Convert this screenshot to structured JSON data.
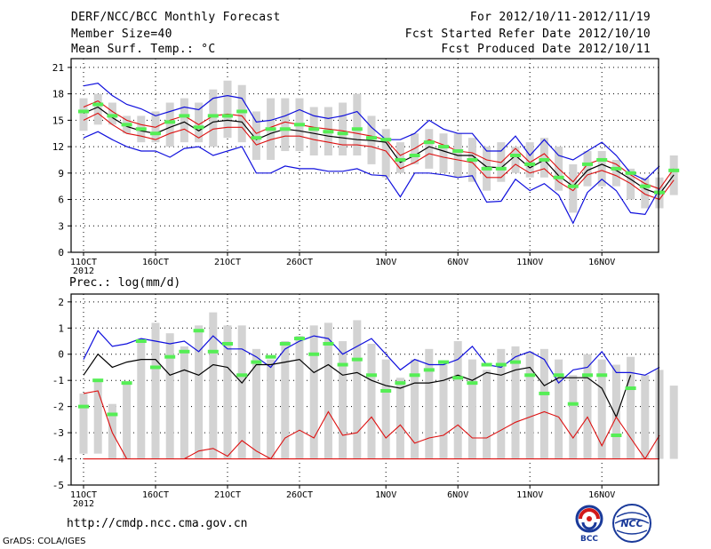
{
  "header": {
    "title": "DERF/NCC/BCC Monthly Forecast",
    "member_size": "Member Size=40",
    "variable": "Mean Surf. Temp.: °C",
    "forecast_period": "For 2012/10/11-2012/11/19",
    "started": "Fcst Started Refer Date 2012/10/10",
    "produced": "Fcst Produced Date 2012/10/11"
  },
  "footer": {
    "url": "http://cmdp.ncc.cma.gov.cn",
    "credit": "GrADS: COLA/IGES",
    "logo_left_text": "BCC",
    "logo_right_text": "NCC"
  },
  "colors": {
    "box": "#d3d3d3",
    "median": "#55ee55",
    "spread": "#1010dd",
    "mean_band": "#dd1010",
    "mean": "#000000"
  },
  "chart_data": [
    {
      "type": "line",
      "title": "Mean Surf. Temp.: °C",
      "x_tick_labels": [
        "11OCT",
        "16OCT",
        "21OCT",
        "26OCT",
        "1NOV",
        "6NOV",
        "11NOV",
        "16NOV"
      ],
      "x_tick_days": [
        0,
        5,
        10,
        15,
        21,
        26,
        31,
        36
      ],
      "x_year_label": "2012",
      "ylim": [
        0,
        22
      ],
      "y_ticks": [
        0,
        3,
        6,
        9,
        12,
        15,
        18,
        21
      ],
      "grid": "dotted",
      "series": [
        {
          "name": "box_low",
          "values": [
            13.8,
            14.5,
            14.5,
            13.5,
            12.5,
            12.5,
            12,
            12.5,
            12.5,
            12,
            13,
            12.5,
            10.5,
            10.5,
            11.5,
            11.5,
            11,
            11,
            11,
            11,
            10,
            8.5,
            9,
            10,
            9.5,
            9,
            8.5,
            8,
            7,
            8,
            9,
            8.5,
            8.5,
            7,
            4.5,
            7.5,
            7.5,
            7.5,
            6,
            5,
            5,
            6.5
          ]
        },
        {
          "name": "box_high",
          "values": [
            17.5,
            18,
            17,
            15.5,
            15.5,
            16,
            17,
            17.5,
            17,
            18.5,
            19.5,
            19,
            16,
            17.5,
            17.5,
            17.5,
            16.5,
            16.5,
            17,
            18,
            15.5,
            14,
            12.5,
            13.5,
            14,
            13.5,
            13.5,
            13,
            12,
            12.5,
            12,
            12.5,
            13,
            12,
            10,
            11.5,
            11.5,
            10.5,
            9.5,
            8.5,
            8.5,
            11
          ]
        },
        {
          "name": "ensemble_median",
          "values": [
            16,
            16.8,
            15.5,
            14.5,
            14,
            13.5,
            14.8,
            15.5,
            14.2,
            15.5,
            15.5,
            16,
            13,
            14,
            14,
            14.5,
            14,
            13.7,
            13.5,
            14,
            13,
            12.8,
            10.5,
            11,
            12.5,
            12,
            11.5,
            10.5,
            9.5,
            9.5,
            11,
            10,
            10.5,
            8.5,
            7.5,
            10,
            10.5,
            9.5,
            9,
            7.5,
            6.8,
            9.3
          ]
        },
        {
          "name": "max",
          "values": [
            18.9,
            19.2,
            17.8,
            16.8,
            16.3,
            15.5,
            16,
            16.5,
            16.2,
            17.5,
            17.8,
            17.5,
            14.8,
            15,
            15.5,
            16.2,
            15.5,
            15.2,
            15.5,
            16,
            14.2,
            12.8,
            12.8,
            13.5,
            15,
            14,
            13.5,
            13.5,
            11.5,
            11.5,
            13.2,
            11,
            12.8,
            11,
            10.5,
            11.5,
            12.5,
            11,
            9,
            8.2,
            9.8
          ]
        },
        {
          "name": "mean_plus_sd",
          "values": [
            16.5,
            17.2,
            16,
            15,
            14.5,
            14.2,
            15,
            15.5,
            14.5,
            15.5,
            15.7,
            15.5,
            13.5,
            14.2,
            14.8,
            14.5,
            14.2,
            14,
            13.8,
            13.5,
            13.2,
            12.8,
            11,
            11.8,
            12.8,
            12.2,
            11.5,
            11.3,
            10.5,
            10.2,
            11.8,
            10.2,
            11.2,
            9.5,
            8,
            10,
            10.6,
            10,
            8.8,
            7.8,
            7.2,
            9.5
          ]
        },
        {
          "name": "ensemble_mean",
          "values": [
            15.8,
            16.5,
            15.3,
            14.3,
            13.8,
            13.5,
            14.2,
            14.8,
            13.8,
            14.8,
            15,
            14.8,
            12.8,
            13.5,
            14,
            13.8,
            13.5,
            13.2,
            13,
            12.8,
            12.7,
            12.5,
            10.2,
            11,
            12,
            11.5,
            11,
            11,
            9.7,
            9.6,
            11,
            9.6,
            10.5,
            8.7,
            7.5,
            9.3,
            10,
            9.3,
            8.3,
            7.2,
            6.6,
            8.8
          ]
        },
        {
          "name": "mean_minus_sd",
          "values": [
            15,
            15.8,
            14.5,
            13.5,
            13.2,
            12.8,
            13.5,
            14,
            13,
            14,
            14.2,
            14.2,
            12.2,
            12.8,
            13.2,
            13.2,
            12.8,
            12.5,
            12.2,
            12.2,
            12,
            11.5,
            9.5,
            10.2,
            11.2,
            10.8,
            10.5,
            10.2,
            8.5,
            8.5,
            10,
            9,
            9.5,
            8,
            7,
            8.8,
            9.3,
            8.7,
            7.8,
            6.6,
            6,
            8.2
          ]
        },
        {
          "name": "min",
          "values": [
            13,
            13.7,
            12.8,
            12,
            11.5,
            11.5,
            10.8,
            11.8,
            12,
            11,
            11.5,
            12,
            9,
            9,
            9.8,
            9.5,
            9.5,
            9.2,
            9.2,
            9.5,
            8.8,
            8.7,
            6.3,
            9,
            9,
            8.8,
            8.5,
            8.7,
            5.7,
            5.8,
            8.3,
            7,
            7.8,
            6.5,
            3.3,
            6.8,
            8.3,
            7,
            4.5,
            4.3,
            7.2
          ]
        }
      ]
    },
    {
      "type": "line",
      "title": "Prec.: log(mm/d)",
      "x_tick_labels": [
        "11OCT",
        "16OCT",
        "21OCT",
        "26OCT",
        "1NOV",
        "6NOV",
        "11NOV",
        "16NOV"
      ],
      "x_tick_days": [
        0,
        5,
        10,
        15,
        21,
        26,
        31,
        36
      ],
      "x_year_label": "2012",
      "ylim": [
        -5,
        2.3
      ],
      "y_ticks": [
        -5,
        -4,
        -3,
        -2,
        -1,
        0,
        1,
        2
      ],
      "grid": "dotted",
      "series": [
        {
          "name": "box_low",
          "values": [
            -3.8,
            -3.8,
            -4,
            -4,
            -4,
            -4,
            -4,
            -4,
            -4,
            -4,
            -4,
            -4,
            -4,
            -4,
            -4,
            -4,
            -4,
            -4,
            -4,
            -4,
            -4,
            -4,
            -4,
            -4,
            -4,
            -4,
            -4,
            -4,
            -4,
            -4,
            -4,
            -4,
            -4,
            -4,
            -4,
            -4,
            -4,
            -4,
            -4,
            -4,
            -4,
            -4
          ]
        },
        {
          "name": "box_high",
          "values": [
            -1.5,
            -1,
            -1.9,
            -1.1,
            0.6,
            1.2,
            0.8,
            0.3,
            1.1,
            1.6,
            1.1,
            1.1,
            0.2,
            -0.2,
            0.5,
            0.7,
            1.1,
            1.2,
            0.5,
            1.3,
            0.4,
            -0.2,
            -0.9,
            -0.2,
            0.2,
            -0.4,
            0.5,
            -0.2,
            -0.6,
            0.2,
            0.3,
            0.1,
            0.2,
            -0.2,
            -0.8,
            0,
            -0.2,
            -0.4,
            -0.1,
            -0.8,
            -0.6,
            -1.2
          ]
        },
        {
          "name": "ensemble_median",
          "values": [
            -2,
            -1,
            -2.3,
            -1.1,
            0.5,
            -0.5,
            -0.1,
            0.1,
            0.9,
            0.1,
            0.4,
            -0.8,
            -0.3,
            -0.1,
            0.4,
            0.6,
            0,
            0.4,
            -0.4,
            -0.2,
            -0.8,
            -1.4,
            -1.1,
            -0.8,
            -0.6,
            -0.3,
            -0.9,
            -1.1,
            -0.4,
            -0.4,
            -0.3,
            -0.8,
            -1.5,
            -0.8,
            -1.9,
            -0.8,
            -0.8,
            -3.1,
            -1.3
          ]
        },
        {
          "name": "max",
          "values": [
            -0.2,
            0.9,
            0.3,
            0.4,
            0.6,
            0.5,
            0.4,
            0.5,
            0.1,
            0.7,
            0.2,
            0.2,
            -0.1,
            -0.5,
            0.2,
            0.5,
            0.7,
            0.6,
            0,
            0.3,
            0.6,
            0,
            -0.6,
            -0.2,
            -0.4,
            -0.4,
            -0.2,
            0.3,
            -0.4,
            -0.5,
            -0.1,
            0.1,
            -0.2,
            -1.1,
            -0.6,
            -0.5,
            0.1,
            -0.7,
            -0.7,
            -0.8,
            -0.5
          ]
        },
        {
          "name": "ensemble_mean",
          "values": [
            -0.8,
            0,
            -0.5,
            -0.3,
            -0.2,
            -0.2,
            -0.8,
            -0.6,
            -0.8,
            -0.4,
            -0.5,
            -1.1,
            -0.4,
            -0.4,
            -0.3,
            -0.2,
            -0.7,
            -0.4,
            -0.8,
            -0.7,
            -1,
            -1.2,
            -1.3,
            -1.1,
            -1.1,
            -1,
            -0.8,
            -1,
            -0.7,
            -0.8,
            -0.6,
            -0.5,
            -1.2,
            -0.9,
            -0.9,
            -0.9,
            -1.3,
            -2.4,
            -0.8
          ]
        },
        {
          "name": "min",
          "values": [
            -1.5,
            -1.4,
            -3,
            -4,
            -4,
            -4,
            -4,
            -4,
            -3.7,
            -3.6,
            -3.9,
            -3.3,
            -3.7,
            -4,
            -3.2,
            -2.9,
            -3.2,
            -2.2,
            -3.1,
            -3,
            -2.4,
            -3.2,
            -2.7,
            -3.4,
            -3.2,
            -3.1,
            -2.7,
            -3.2,
            -3.2,
            -2.9,
            -2.6,
            -2.4,
            -2.2,
            -2.4,
            -3.2,
            -2.4,
            -3.5,
            -2.4,
            -3.2,
            -4,
            -3.1
          ]
        },
        {
          "name": "floor",
          "values": [
            -4,
            -4
          ]
        }
      ]
    }
  ]
}
